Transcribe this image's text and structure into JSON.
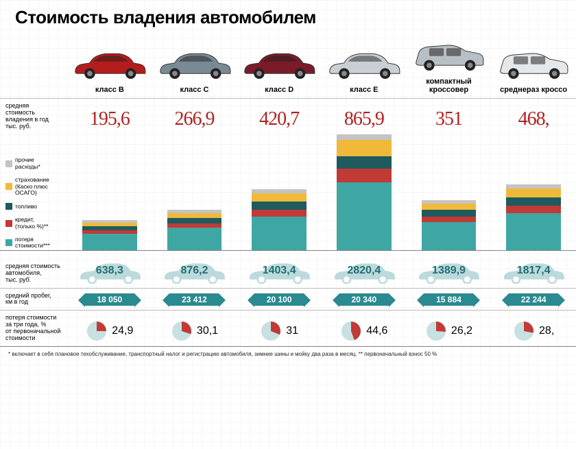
{
  "title": "Стоимость владения автомобилем",
  "columns": [
    {
      "label": "класс B",
      "car_color": "#b51c1c",
      "cost": "195,6",
      "stack": {
        "loss": 25,
        "credit": 5,
        "fuel": 6,
        "insurance": 5,
        "other": 4
      },
      "price": "638,3",
      "mileage": "18 050",
      "depr": "24,9",
      "depr_angle": 90
    },
    {
      "label": "класс C",
      "car_color": "#7a8a94",
      "cost": "266,9",
      "stack": {
        "loss": 34,
        "credit": 6,
        "fuel": 8,
        "insurance": 7,
        "other": 5
      },
      "price": "876,2",
      "mileage": "23 412",
      "depr": "30,1",
      "depr_angle": 108
    },
    {
      "label": "класс D",
      "car_color": "#7a1b2a",
      "cost": "420,7",
      "stack": {
        "loss": 50,
        "credit": 10,
        "fuel": 12,
        "insurance": 12,
        "other": 6
      },
      "price": "1403,4",
      "mileage": "20 100",
      "depr": "31",
      "depr_angle": 112
    },
    {
      "label": "класс E",
      "car_color": "#c9cfd4",
      "cost": "865,9",
      "stack": {
        "loss": 100,
        "credit": 20,
        "fuel": 18,
        "insurance": 24,
        "other": 8
      },
      "price": "2820,4",
      "mileage": "20 340",
      "depr": "44,6",
      "depr_angle": 160
    },
    {
      "label": "компактный кроссовер",
      "car_color": "#b8c0c6",
      "cost": "351",
      "stack": {
        "loss": 42,
        "credit": 8,
        "fuel": 10,
        "insurance": 9,
        "other": 5
      },
      "price": "1389,9",
      "mileage": "15 884",
      "depr": "26,2",
      "depr_angle": 94
    },
    {
      "label": "среднераз кроссо",
      "car_color": "#e4e8eb",
      "cost": "468,",
      "stack": {
        "loss": 55,
        "credit": 11,
        "fuel": 12,
        "insurance": 13,
        "other": 6
      },
      "price": "1817,4",
      "mileage": "22 244",
      "depr": "28,",
      "depr_angle": 101
    }
  ],
  "row_labels": {
    "cost": "средняя\nстоимость\nвладения в год\nтыс. руб.",
    "price": "средняя стоимость\nавтомобиля,\nтыс. руб.",
    "mileage": "средний пробег,\nкм в год",
    "depr": "потеря стоимости\nза три года, %\nот первоначальной\nстоимости"
  },
  "legend": [
    {
      "key": "other",
      "label": "прочие\nрасходы*",
      "color": "#c4c4c4"
    },
    {
      "key": "insurance",
      "label": "страхование\n(Каско плюс\nОСАГО)",
      "color": "#f0b93a"
    },
    {
      "key": "fuel",
      "label": "топливо",
      "color": "#1f5a5e"
    },
    {
      "key": "credit",
      "label": "кредит,\n(только %)**",
      "color": "#c13a36"
    },
    {
      "key": "loss",
      "label": "потеря\nстоимости***",
      "color": "#3ea7a4"
    }
  ],
  "colors": {
    "red_num": "#b32020",
    "teal": "#2a8a90",
    "sil": "#bcd9db",
    "pie_main": "#c13a36",
    "pie_rest": "#c7e0e1"
  },
  "footnote": "* включает в себя плановое техобслуживание, транспортный налог и регистрацию автомобиля, зимние шины и мойку два раза в месяц.    ** первоначальный взнос 50 %"
}
